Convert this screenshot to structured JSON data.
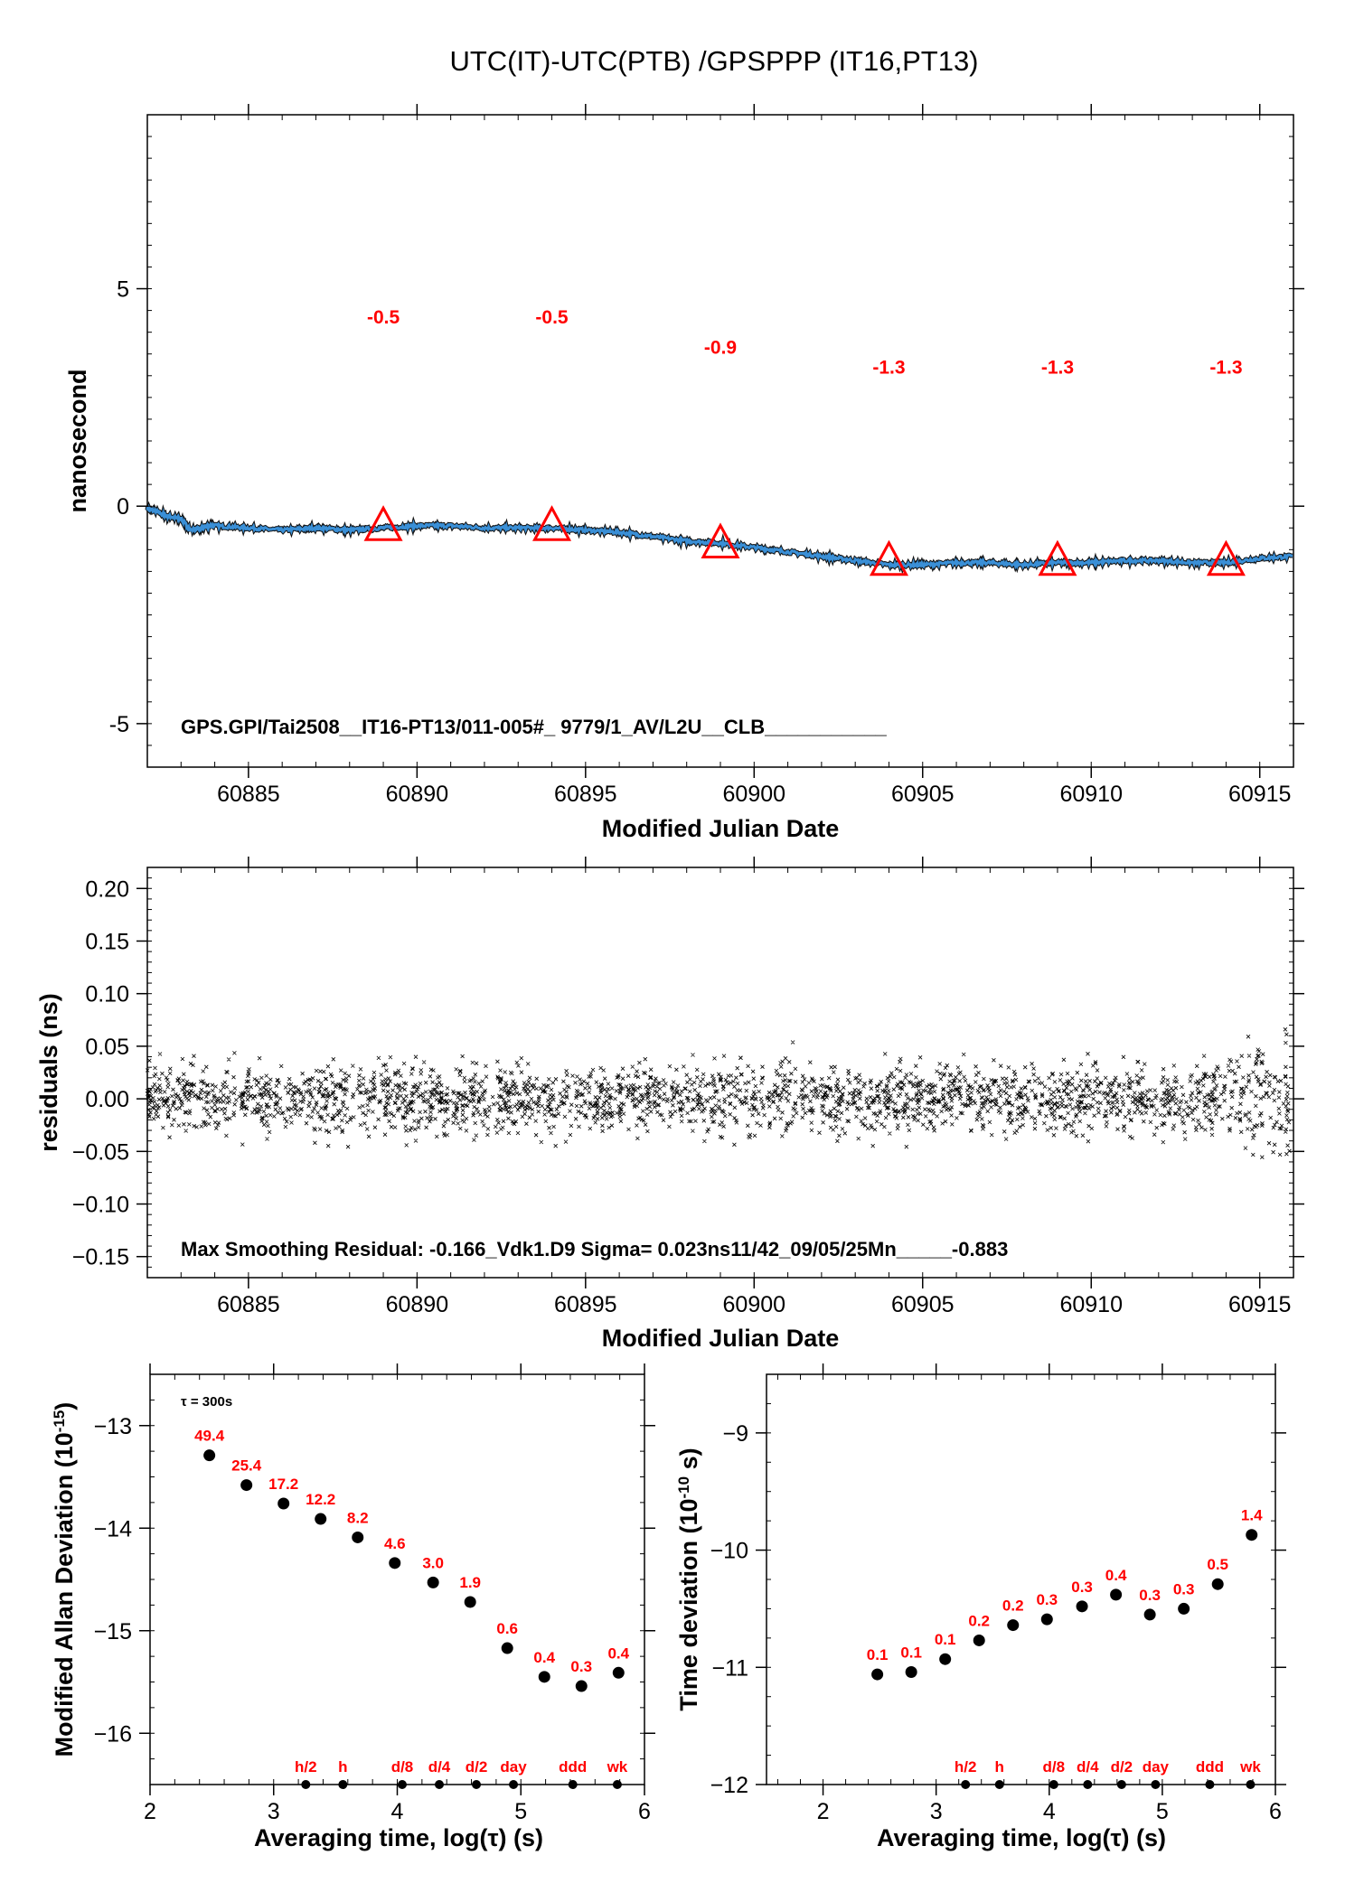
{
  "title": "UTC(IT)-UTC(PTB)  /GPSPPP  (IT16,PT13)",
  "colors": {
    "series": "#3a8fd6",
    "annotation": "#ff0000",
    "axis": "#000000"
  },
  "chart_data": [
    {
      "id": "top",
      "type": "line",
      "xlabel": "Modified Julian Date",
      "ylabel": "nanosecond",
      "xlim": [
        60882,
        60916
      ],
      "ylim": [
        -6,
        9
      ],
      "xticks": [
        60885,
        60890,
        60895,
        60900,
        60905,
        60910,
        60915
      ],
      "yticks": [
        -5,
        0,
        5
      ],
      "series": [
        {
          "values_x": [
            60882,
            60882.5,
            60883,
            60883.3,
            60883.6,
            60884,
            60885,
            60886,
            60887,
            60888,
            60889,
            60890,
            60891,
            60892,
            60893,
            60894,
            60895,
            60896,
            60897,
            60898,
            60899,
            60900,
            60901,
            60902,
            60903,
            60904,
            60905,
            60906,
            60907,
            60908,
            60909,
            60910,
            60911,
            60912,
            60913,
            60914,
            60915,
            60916
          ],
          "values_y": [
            -0.05,
            -0.2,
            -0.3,
            -0.55,
            -0.5,
            -0.45,
            -0.5,
            -0.55,
            -0.5,
            -0.55,
            -0.5,
            -0.45,
            -0.45,
            -0.5,
            -0.5,
            -0.5,
            -0.55,
            -0.6,
            -0.7,
            -0.8,
            -0.85,
            -0.95,
            -1.05,
            -1.15,
            -1.25,
            -1.35,
            -1.35,
            -1.3,
            -1.3,
            -1.35,
            -1.3,
            -1.3,
            -1.25,
            -1.25,
            -1.3,
            -1.3,
            -1.2,
            -1.15
          ]
        }
      ],
      "markers": [
        {
          "x": 60889,
          "y": -0.5,
          "label": "-0.5"
        },
        {
          "x": 60894,
          "y": -0.5,
          "label": "-0.5"
        },
        {
          "x": 60899,
          "y": -0.9,
          "label": "-0.9"
        },
        {
          "x": 60904,
          "y": -1.3,
          "label": "-1.3"
        },
        {
          "x": 60909,
          "y": -1.3,
          "label": "-1.3"
        },
        {
          "x": 60914,
          "y": -1.3,
          "label": "-1.3"
        }
      ],
      "annotation": "GPS.GPI/Tai2508__IT16-PT13/011-005#_  9779/1_AV/L2U__CLB___________"
    },
    {
      "id": "residuals",
      "type": "scatter",
      "xlabel": "Modified Julian Date",
      "ylabel": "residuals (ns)",
      "xlim": [
        60882,
        60916
      ],
      "ylim": [
        -0.17,
        0.22
      ],
      "xticks": [
        60885,
        60890,
        60895,
        60900,
        60905,
        60910,
        60915
      ],
      "yticks": [
        -0.15,
        -0.1,
        -0.05,
        0.0,
        0.05,
        0.1,
        0.15,
        0.2
      ],
      "ytick_labels": [
        "−0.15",
        "−0.10",
        "−0.05",
        "0.00",
        "0.05",
        "0.10",
        "0.15",
        "0.20"
      ],
      "sigma": 0.023,
      "max_residual": -0.166,
      "annotation": "Max Smoothing Residual: -0.166_Vdk1.D9  Sigma= 0.023ns11/42_09/05/25Mn_____-0.883"
    },
    {
      "id": "mdev",
      "type": "scatter",
      "xlabel": "Averaging time, log(τ) (s)",
      "ylabel": "Modified Allan Deviation (10",
      "ylabel_sup": "-15",
      "ylabel_end": ")",
      "xlim": [
        2,
        6
      ],
      "ylim": [
        -16.5,
        -12.5
      ],
      "xticks": [
        2,
        3,
        4,
        5,
        6
      ],
      "yticks": [
        -16,
        -15,
        -14,
        -13
      ],
      "ytick_labels": [
        "−16",
        "−15",
        "−14",
        "−13"
      ],
      "tau_note": "τ = 300s",
      "x": [
        2.48,
        2.78,
        3.08,
        3.38,
        3.68,
        3.98,
        4.29,
        4.59,
        4.89,
        5.19,
        5.49,
        5.79
      ],
      "y": [
        -13.29,
        -13.58,
        -13.76,
        -13.91,
        -14.09,
        -14.34,
        -14.53,
        -14.72,
        -15.17,
        -15.45,
        -15.54,
        -15.41
      ],
      "labels": [
        "49.4",
        "25.4",
        "17.2",
        "12.2",
        "8.2",
        "4.6",
        "3.0",
        "1.9",
        "0.6",
        "0.4",
        "0.3",
        "0.4"
      ],
      "ref_x": [
        3.26,
        3.56,
        4.04,
        4.34,
        4.64,
        4.94,
        5.42,
        5.78
      ],
      "ref_labels": [
        "h/2",
        "h",
        "d/8",
        "d/4",
        "d/2",
        "day",
        "ddd",
        "wk"
      ]
    },
    {
      "id": "tdev",
      "type": "scatter",
      "xlabel": "Averaging time, log(τ) (s)",
      "ylabel": "Time deviation (10",
      "ylabel_sup": "-10",
      "ylabel_end": " s)",
      "xlim": [
        1.5,
        6
      ],
      "ylim": [
        -12,
        -8.5
      ],
      "xticks": [
        2,
        3,
        4,
        5,
        6
      ],
      "yticks": [
        -12,
        -11,
        -10,
        -9
      ],
      "ytick_labels": [
        "−12",
        "−11",
        "−10",
        "−9"
      ],
      "x": [
        2.48,
        2.78,
        3.08,
        3.38,
        3.68,
        3.98,
        4.29,
        4.59,
        4.89,
        5.19,
        5.49,
        5.79
      ],
      "y": [
        -11.06,
        -11.04,
        -10.93,
        -10.77,
        -10.64,
        -10.59,
        -10.48,
        -10.38,
        -10.55,
        -10.5,
        -10.29,
        -9.87
      ],
      "labels": [
        "0.1",
        "0.1",
        "0.1",
        "0.2",
        "0.2",
        "0.3",
        "0.3",
        "0.4",
        "0.3",
        "0.3",
        "0.5",
        "1.4"
      ],
      "ref_x": [
        3.26,
        3.56,
        4.04,
        4.34,
        4.64,
        4.94,
        5.42,
        5.78
      ],
      "ref_labels": [
        "h/2",
        "h",
        "d/8",
        "d/4",
        "d/2",
        "day",
        "ddd",
        "wk"
      ]
    }
  ]
}
